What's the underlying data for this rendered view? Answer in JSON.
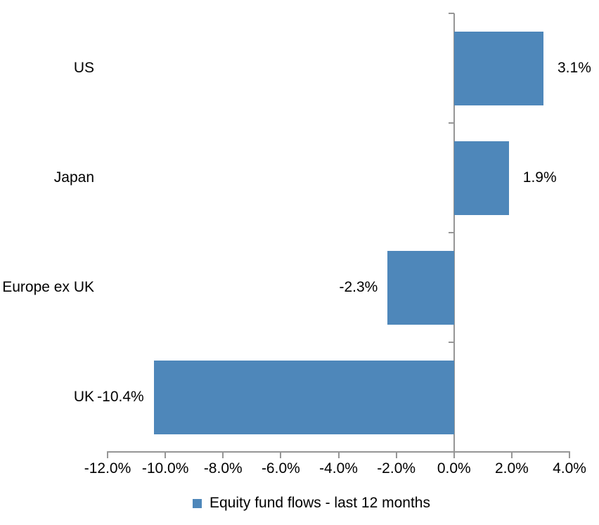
{
  "chart_data": {
    "type": "bar",
    "orientation": "horizontal",
    "title": "",
    "categories": [
      "US",
      "Japan",
      "Europe ex UK",
      "UK"
    ],
    "series": [
      {
        "name": "Equity fund flows - last 12 months",
        "values": [
          3.1,
          1.9,
          -2.3,
          -10.4
        ],
        "value_labels": [
          "3.1%",
          "1.9%",
          "-2.3%",
          "-10.4%"
        ]
      }
    ],
    "xlabel": "",
    "ylabel": "",
    "xlim": [
      -12.0,
      4.0
    ],
    "x_tick_step": 2.0,
    "x_tick_labels": [
      "-12.0%",
      "-10.0%",
      "-8.0%",
      "-6.0%",
      "-4.0%",
      "-2.0%",
      "0.0%",
      "2.0%",
      "4.0%"
    ],
    "grid": false,
    "legend": {
      "position": "bottom",
      "label": "Equity fund flows - last 12 months"
    },
    "colors": {
      "bar": "#4e87ba",
      "axis": "#969696",
      "text": "#000000",
      "background": "#ffffff"
    }
  }
}
